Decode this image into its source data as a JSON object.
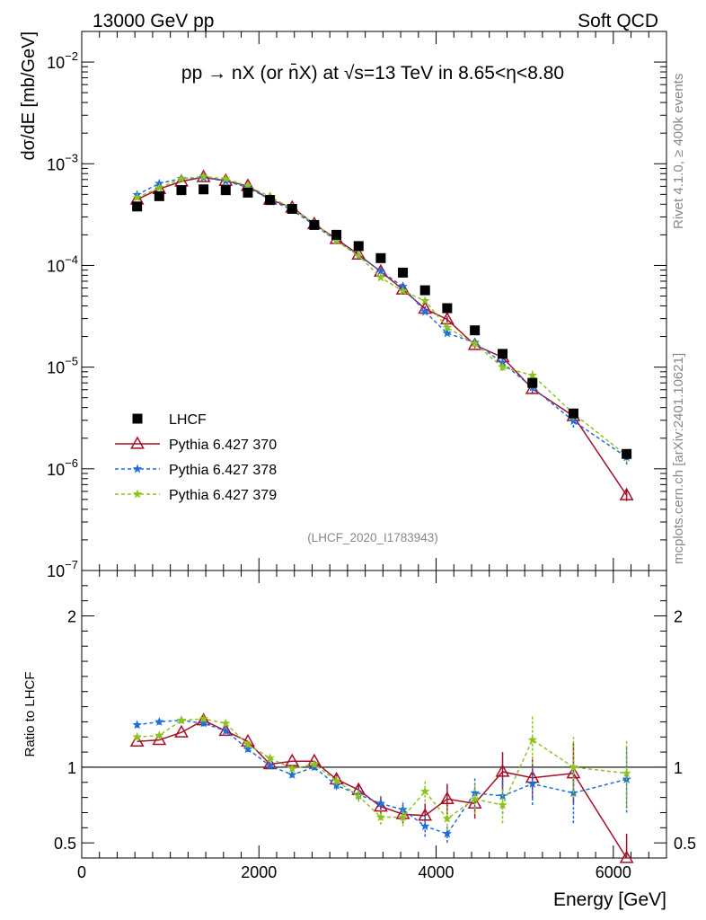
{
  "header": {
    "left": "13000 GeV pp",
    "right": "Soft QCD"
  },
  "side": {
    "rivet": "Rivet 4.1.0, ≥ 400k events",
    "mcplots": "mcplots.cern.ch [arXiv:2401.10621]"
  },
  "chart_data": {
    "type": "scatter",
    "title": "pp → nX (or n̄X) at √s=13 TeV in 8.65<η<8.80",
    "analysis_tag": "(LHCF_2020_I1783943)",
    "xlabel": "Energy [GeV]",
    "ylabel_main": "dσ/dE [mb/GeV]",
    "ylabel_ratio": "Ratio to LHCF",
    "xlim": [
      0,
      6600
    ],
    "ylim_main": [
      1e-07,
      0.02
    ],
    "ylim_ratio": [
      0.4,
      2.3
    ],
    "x_ticks": [
      "0",
      "2000",
      "4000",
      "6000"
    ],
    "y_ticks_main": [
      {
        "base": "10",
        "exp": "−7"
      },
      {
        "base": "10",
        "exp": "−6"
      },
      {
        "base": "10",
        "exp": "−5"
      },
      {
        "base": "10",
        "exp": "−4"
      },
      {
        "base": "10",
        "exp": "−3"
      },
      {
        "base": "10",
        "exp": "−2"
      }
    ],
    "y_ticks_ratio": [
      "0.5",
      "1",
      "2"
    ],
    "x": [
      625,
      875,
      1125,
      1375,
      1625,
      1875,
      2125,
      2375,
      2625,
      2875,
      3125,
      3375,
      3625,
      3875,
      4125,
      4437,
      4750,
      5087,
      5550,
      6150
    ],
    "series": [
      {
        "name": "LHCF",
        "style": "data",
        "color": "#000000",
        "values": [
          0.00038,
          0.00048,
          0.00055,
          0.00056,
          0.00055,
          0.00052,
          0.00044,
          0.00036,
          0.00025,
          0.0002,
          0.000155,
          0.000118,
          8.5e-05,
          5.7e-05,
          3.8e-05,
          2.3e-05,
          1.35e-05,
          7e-06,
          3.5e-06,
          1.4e-06
        ],
        "ratio": [
          1.0,
          1.0,
          1.0,
          1.0,
          1.0,
          1.0,
          1.0,
          1.0,
          1.0,
          1.0,
          1.0,
          1.0,
          1.0,
          1.0,
          1.0,
          1.0,
          1.0,
          1.0,
          1.0,
          1.0
        ]
      },
      {
        "name": "Pythia 6.427 370",
        "style": "solid-triangle",
        "color": "#a50f2a",
        "values": [
          0.000445,
          0.000565,
          0.00067,
          0.00074,
          0.00068,
          0.000605,
          0.000445,
          0.00037,
          0.000255,
          0.000182,
          0.000128,
          8.7e-05,
          5.8e-05,
          3.75e-05,
          2.95e-05,
          1.65e-05,
          1.25e-05,
          6.1e-06,
          3.3e-06,
          5.5e-07
        ],
        "ratio": [
          1.17,
          1.18,
          1.23,
          1.31,
          1.24,
          1.17,
          1.02,
          1.04,
          1.04,
          0.92,
          0.85,
          0.74,
          0.69,
          0.68,
          0.79,
          0.76,
          0.97,
          0.93,
          0.96,
          0.38
        ],
        "err_lo_ratio": [
          0,
          0,
          0,
          0,
          0,
          0,
          0,
          0,
          0,
          0.03,
          0.04,
          0.06,
          0.06,
          0.08,
          0.1,
          0.1,
          0.13,
          0.14,
          0.2,
          0.18
        ],
        "err_hi_ratio": [
          0,
          0,
          0,
          0,
          0,
          0,
          0,
          0,
          0,
          0.03,
          0.04,
          0.06,
          0.06,
          0.08,
          0.1,
          0.1,
          0.13,
          0.14,
          0.2,
          0.18
        ]
      },
      {
        "name": "Pythia 6.427 378",
        "style": "dashed-star",
        "color": "#1e6fd9",
        "values": [
          0.000495,
          0.00064,
          0.000715,
          0.00073,
          0.000675,
          0.000585,
          0.000445,
          0.00035,
          0.00025,
          0.000175,
          0.000125,
          8.8e-05,
          6.2e-05,
          3.5e-05,
          2.15e-05,
          1.75e-05,
          1.1e-05,
          6.3e-06,
          2.95e-06,
          1.3e-06
        ],
        "ratio": [
          1.28,
          1.3,
          1.31,
          1.29,
          1.24,
          1.12,
          1.01,
          0.95,
          1.0,
          0.88,
          0.82,
          0.76,
          0.72,
          0.61,
          0.56,
          0.83,
          0.81,
          0.89,
          0.83,
          0.92
        ],
        "err_lo_ratio": [
          0.02,
          0.02,
          0.02,
          0.02,
          0.02,
          0.02,
          0.02,
          0.02,
          0.02,
          0.03,
          0.04,
          0.05,
          0.06,
          0.07,
          0.06,
          0.1,
          0.12,
          0.14,
          0.2,
          0.22
        ],
        "err_hi_ratio": [
          0.02,
          0.02,
          0.02,
          0.02,
          0.02,
          0.02,
          0.02,
          0.02,
          0.02,
          0.03,
          0.04,
          0.05,
          0.06,
          0.07,
          0.06,
          0.1,
          0.12,
          0.14,
          0.2,
          0.22
        ]
      },
      {
        "name": "Pythia 6.427 379",
        "style": "dashed-star",
        "color": "#8dc21f",
        "values": [
          0.000465,
          0.00058,
          0.00071,
          0.00075,
          0.00071,
          0.000605,
          0.000475,
          0.00036,
          0.00026,
          0.000175,
          0.000125,
          7.6e-05,
          5.6e-05,
          4.5e-05,
          2.45e-05,
          1.7e-05,
          1e-05,
          8.3e-06,
          3.5e-06,
          1.35e-06
        ],
        "ratio": [
          1.2,
          1.21,
          1.31,
          1.32,
          1.29,
          1.15,
          1.06,
          0.99,
          1.02,
          0.91,
          0.81,
          0.67,
          0.67,
          0.84,
          0.66,
          0.79,
          0.75,
          1.18,
          1.0,
          0.96
        ],
        "err_lo_ratio": [
          0.02,
          0.02,
          0.02,
          0.02,
          0.02,
          0.02,
          0.02,
          0.02,
          0.02,
          0.03,
          0.04,
          0.05,
          0.06,
          0.07,
          0.08,
          0.1,
          0.12,
          0.16,
          0.2,
          0.22
        ],
        "err_hi_ratio": [
          0.02,
          0.02,
          0.02,
          0.02,
          0.02,
          0.02,
          0.02,
          0.02,
          0.02,
          0.03,
          0.04,
          0.05,
          0.06,
          0.07,
          0.08,
          0.1,
          0.12,
          0.16,
          0.2,
          0.22
        ]
      }
    ]
  }
}
